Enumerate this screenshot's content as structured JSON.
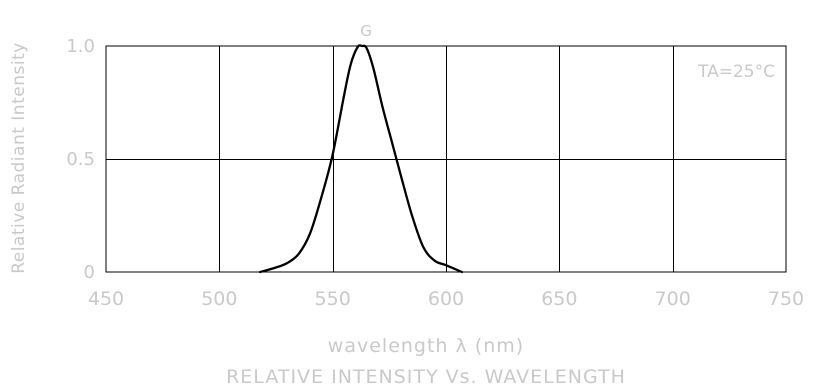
{
  "chart_data": {
    "type": "line",
    "title": "RELATIVE INTENSITY Vs. WAVELENGTH",
    "xlabel": "wavelength λ (nm)",
    "ylabel": "Relative Radiant Intensity",
    "annotation": "TA=25°C",
    "curve_label": "G",
    "xlim": [
      450,
      750
    ],
    "ylim": [
      0,
      1.0
    ],
    "x_ticks": [
      "450",
      "500",
      "550",
      "600",
      "650",
      "700",
      "750"
    ],
    "x_tick_values": [
      450,
      500,
      550,
      600,
      650,
      700,
      750
    ],
    "y_ticks": [
      "0",
      "0.5",
      "1.0"
    ],
    "y_tick_values": [
      0,
      0.5,
      1.0
    ],
    "grid": true,
    "series": [
      {
        "name": "G",
        "color": "#000000",
        "x": [
          518,
          525,
          530,
          535,
          540,
          545,
          550,
          555,
          558,
          561,
          563,
          565,
          568,
          572,
          576,
          580,
          585,
          590,
          595,
          600,
          607
        ],
        "y": [
          0.0,
          0.02,
          0.04,
          0.08,
          0.17,
          0.33,
          0.52,
          0.78,
          0.92,
          0.995,
          1.0,
          0.99,
          0.9,
          0.73,
          0.58,
          0.43,
          0.25,
          0.11,
          0.05,
          0.03,
          0.0
        ]
      }
    ]
  },
  "colors": {
    "text": "#c9c9c9",
    "grid": "#000000",
    "curve": "#000000",
    "background": "#ffffff"
  }
}
